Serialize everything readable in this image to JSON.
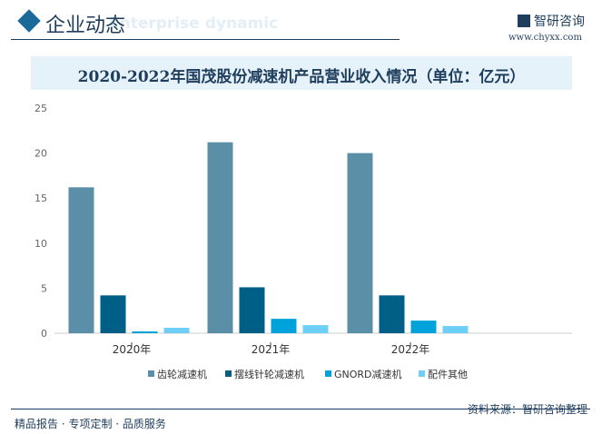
{
  "header": {
    "title": "企业动态",
    "ghost": "Enterprise dynamic",
    "brand": "智研咨询",
    "url": "www.chyxx.com"
  },
  "chart_data": {
    "type": "bar",
    "title": "2020-2022年国茂股份减速机产品营业收入情况（单位：亿元）",
    "categories": [
      "2020年",
      "2021年",
      "2022年"
    ],
    "ylim": [
      0,
      25
    ],
    "yticks": [
      0,
      5,
      10,
      15,
      20,
      25
    ],
    "legend_position": "bottom",
    "series": [
      {
        "name": "齿轮减速机",
        "color": "#5b8fa8",
        "values": [
          16.2,
          21.2,
          20.0
        ]
      },
      {
        "name": "摆线针轮减速机",
        "color": "#005f86",
        "values": [
          4.2,
          5.1,
          4.2
        ]
      },
      {
        "name": "GNORD减速机",
        "color": "#00a2dc",
        "values": [
          0.2,
          1.6,
          1.4
        ]
      },
      {
        "name": "配件其他",
        "color": "#6dcff6",
        "values": [
          0.6,
          0.9,
          0.8
        ]
      }
    ]
  },
  "footer": {
    "left": "精品报告 · 专项定制 · 品质服务",
    "right": "资料来源：智研咨询整理"
  }
}
